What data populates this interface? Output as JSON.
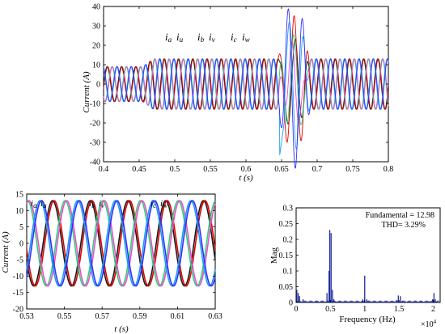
{
  "chart_data": [
    {
      "type": "line",
      "ylabel": "Current (A)",
      "xlabel": "t (s)",
      "xlim": [
        0.4,
        0.8
      ],
      "ylim": [
        -40,
        40
      ],
      "xticks": [
        "0.4",
        "0.45",
        "0.5",
        "0.55",
        "0.6",
        "0.65",
        "0.7",
        "0.75",
        "0.8"
      ],
      "yticks": [
        "40",
        "30",
        "20",
        "10",
        "0",
        "-10",
        "-20",
        "-30",
        "-40"
      ],
      "legend": [
        {
          "main": "i",
          "sub": "a"
        },
        {
          "main": "i",
          "sub": "u"
        },
        {
          "main": "i",
          "sub": "b"
        },
        {
          "main": "i",
          "sub": "v"
        },
        {
          "main": "i",
          "sub": "c"
        },
        {
          "main": "i",
          "sub": "w"
        }
      ],
      "frequency_hz": 50,
      "amplitude_before_0_46s": 9,
      "amplitude_after_0_47s": 13,
      "transient_window": [
        0.645,
        0.69
      ],
      "transient_peak": 29,
      "transient_trough": -37
    },
    {
      "type": "line",
      "ylabel": "Current (A)",
      "xlabel": "t (s)",
      "xlim": [
        0.53,
        0.63
      ],
      "ylim": [
        -20,
        15
      ],
      "xticks": [
        "0.53",
        "0.55",
        "0.57",
        "0.59",
        "0.61",
        "0.63"
      ],
      "yticks": [
        "15",
        "10",
        "5",
        "0",
        "-5",
        "-10",
        "-15",
        "-20"
      ],
      "legend_groups": [
        [
          {
            "main": "i",
            "sub": "a"
          },
          {
            "main": "i",
            "sub": "u"
          }
        ],
        [
          {
            "main": "i",
            "sub": "b"
          },
          {
            "main": "i",
            "sub": "v"
          }
        ],
        [
          {
            "main": "i",
            "sub": "c"
          },
          {
            "main": "i",
            "sub": "w"
          }
        ]
      ],
      "frequency_hz": 50,
      "amplitude": 13
    },
    {
      "type": "bar",
      "ylabel": "Mag",
      "xlabel": "Frequency (Hz)",
      "x_multiplier": "×10",
      "x_multiplier_exp": "4",
      "xlim": [
        0,
        2.1
      ],
      "ylim": [
        0,
        0.3
      ],
      "xticks": [
        "0",
        "0.5",
        "1",
        "1.5",
        "2"
      ],
      "yticks": [
        "0.3",
        "0.25",
        "0.2",
        "0.15",
        "0.1",
        "0.05",
        "0"
      ],
      "annotations": [
        "Fundamental = 12.98",
        "THD= 3.29%"
      ],
      "peaks": [
        {
          "x": 0.01,
          "y": 0.04
        },
        {
          "x": 0.03,
          "y": 0.03
        },
        {
          "x": 0.05,
          "y": 0.02
        },
        {
          "x": 0.1,
          "y": 0.01
        },
        {
          "x": 0.45,
          "y": 0.03
        },
        {
          "x": 0.48,
          "y": 0.1
        },
        {
          "x": 0.49,
          "y": 0.23
        },
        {
          "x": 0.51,
          "y": 0.22
        },
        {
          "x": 0.53,
          "y": 0.04
        },
        {
          "x": 0.55,
          "y": 0.01
        },
        {
          "x": 0.97,
          "y": 0.01
        },
        {
          "x": 1.0,
          "y": 0.085
        },
        {
          "x": 1.03,
          "y": 0.01
        },
        {
          "x": 1.46,
          "y": 0.008
        },
        {
          "x": 1.49,
          "y": 0.022
        },
        {
          "x": 1.52,
          "y": 0.02
        },
        {
          "x": 1.55,
          "y": 0.005
        },
        {
          "x": 1.95,
          "y": 0.004
        },
        {
          "x": 1.99,
          "y": 0.01
        },
        {
          "x": 2.01,
          "y": 0.03
        },
        {
          "x": 2.03,
          "y": 0.01
        }
      ]
    }
  ],
  "colors": {
    "a": "#1a1a1a",
    "u": "#e00000",
    "b": "#2ad27a",
    "v": "#f04ad0",
    "c": "#1c9cf0",
    "w": "#3030ff",
    "spectrum": "#1f2aa0"
  }
}
